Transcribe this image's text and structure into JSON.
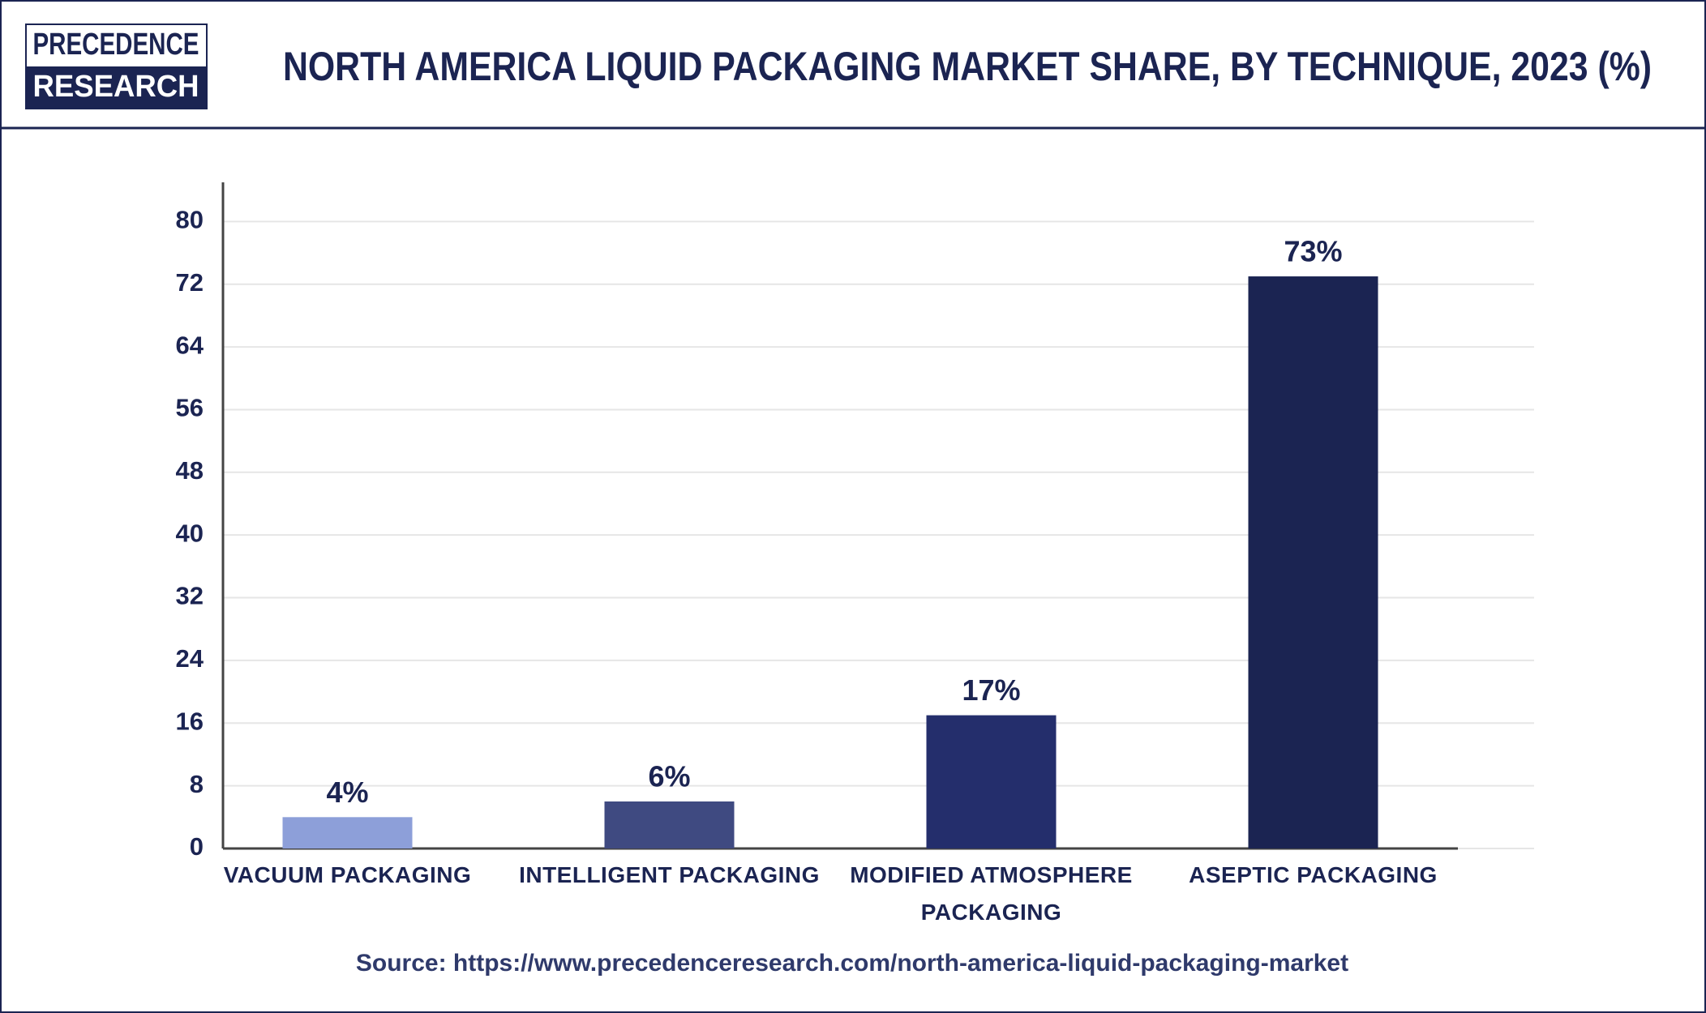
{
  "logo": {
    "top": "PRECEDENCE",
    "bottom": "RESEARCH"
  },
  "chart_data": {
    "type": "bar",
    "title": "NORTH AMERICA LIQUID PACKAGING MARKET SHARE, BY TECHNIQUE, 2023 (%)",
    "categories": [
      "VACUUM PACKAGING",
      "INTELLIGENT PACKAGING",
      "MODIFIED ATMOSPHERE PACKAGING",
      "ASEPTIC PACKAGING"
    ],
    "values": [
      4,
      6,
      17,
      73
    ],
    "value_labels": [
      "4%",
      "6%",
      "17%",
      "73%"
    ],
    "colors": [
      "#8d9fd9",
      "#3f4a81",
      "#242e6c",
      "#1b2452"
    ],
    "ylim": [
      0,
      85
    ],
    "yticks": [
      0,
      8,
      16,
      24,
      32,
      40,
      48,
      56,
      64,
      72,
      80
    ],
    "grid": true,
    "source": "Source: https://www.precedenceresearch.com/north-america-liquid-packaging-market"
  }
}
